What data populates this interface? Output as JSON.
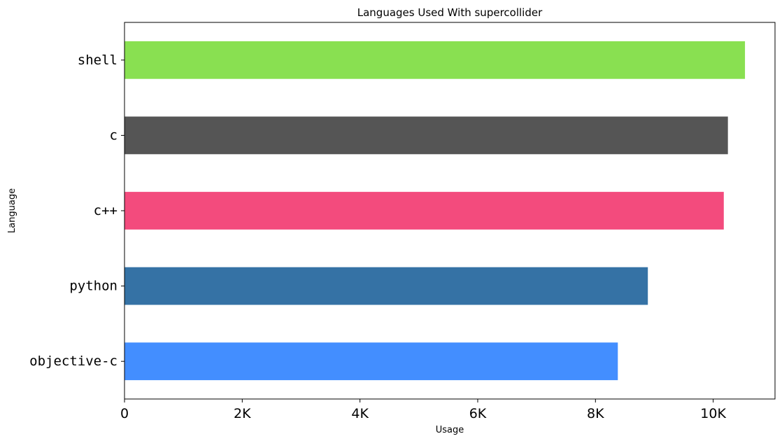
{
  "chart_data": {
    "type": "bar",
    "orientation": "horizontal",
    "title": "Languages Used With supercollider",
    "xlabel": "Usage",
    "ylabel": "Language",
    "categories": [
      "objective-c",
      "python",
      "c++",
      "c",
      "shell"
    ],
    "values": [
      8380,
      8890,
      10180,
      10250,
      10540
    ],
    "colors": [
      "#438eff",
      "#3572a5",
      "#f34b7d",
      "#555555",
      "#89e051"
    ],
    "xlim": [
      0,
      11050
    ],
    "xticks": [
      0,
      2000,
      4000,
      6000,
      8000,
      10000
    ],
    "xtick_labels": [
      "0",
      "2K",
      "4K",
      "6K",
      "8K",
      "10K"
    ],
    "grid": false,
    "legend": false
  }
}
